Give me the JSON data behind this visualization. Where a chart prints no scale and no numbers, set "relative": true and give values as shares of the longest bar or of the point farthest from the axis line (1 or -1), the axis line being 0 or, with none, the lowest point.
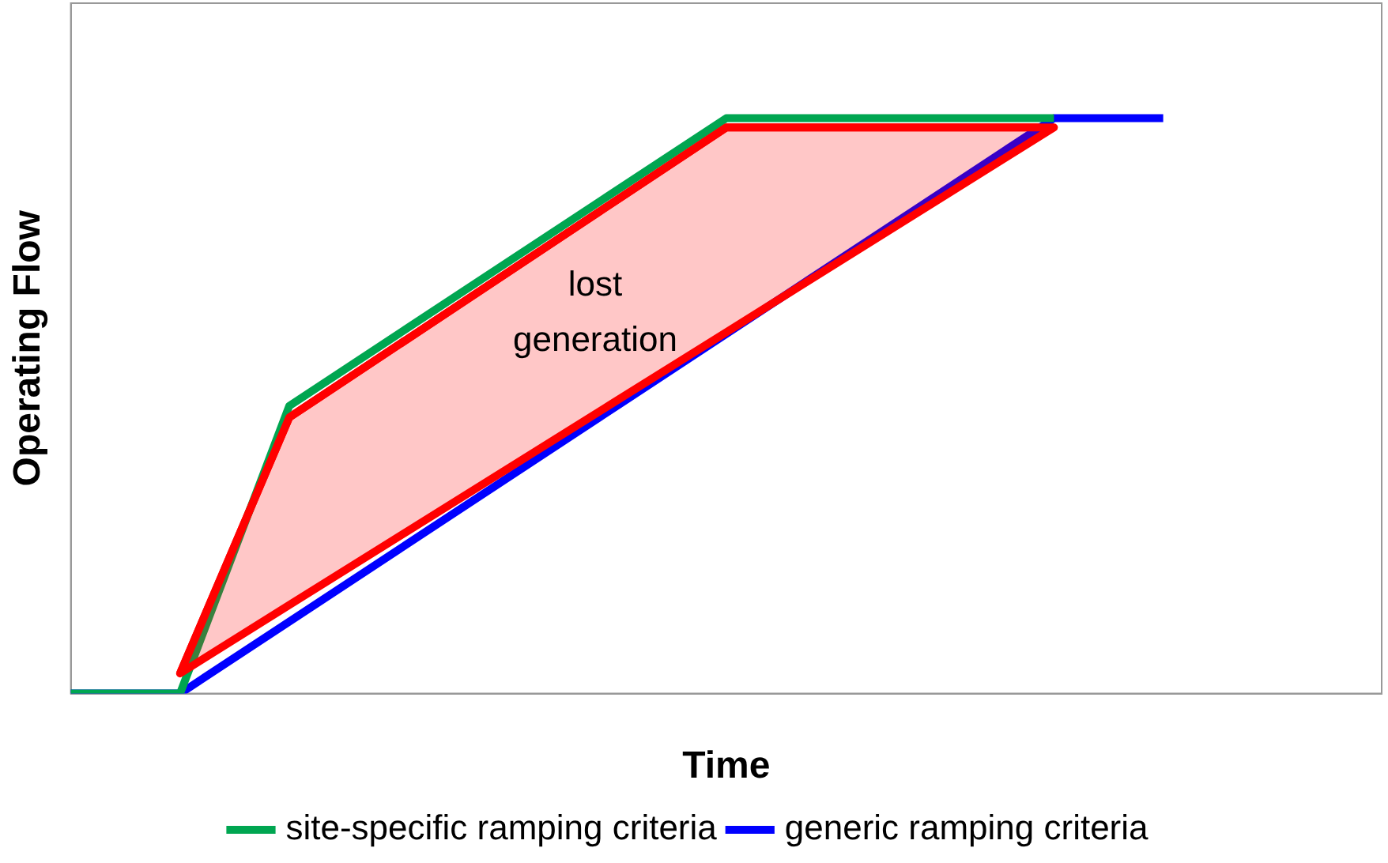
{
  "chart_data": {
    "type": "line",
    "relative": true,
    "xlabel": "Time",
    "ylabel": "Operating Flow",
    "legend": "bottom",
    "marker": "none",
    "categories": [
      null,
      null,
      null,
      null,
      null,
      null,
      null,
      null,
      null,
      null,
      null,
      null,
      null
    ],
    "series": [
      {
        "name": "site-specific ramping criteria",
        "color": "#00a651",
        "values": [
          0,
          0,
          0.5,
          null,
          null,
          null,
          1,
          null,
          null,
          1,
          null,
          null,
          null
        ]
      },
      {
        "name": "generic ramping criteria",
        "color": "#0000ff",
        "values": [
          0,
          0,
          null,
          null,
          null,
          null,
          null,
          null,
          null,
          1,
          1,
          null,
          null
        ]
      },
      {
        "color": "#ff0000",
        "values": [
          null,
          0.035,
          0.48,
          null,
          null,
          null,
          0.984,
          null,
          null,
          0.984,
          null,
          null,
          null
        ],
        "lower": [
          null,
          0.035,
          0.154,
          null,
          null,
          null,
          0.628,
          null,
          null,
          0.984,
          null,
          null,
          null
        ],
        "upper": [
          null,
          0.035,
          0.48,
          null,
          null,
          null,
          0.984,
          null,
          null,
          0.984,
          null,
          null,
          null
        ]
      }
    ],
    "annotations": [
      "lost\ngeneration"
    ]
  }
}
